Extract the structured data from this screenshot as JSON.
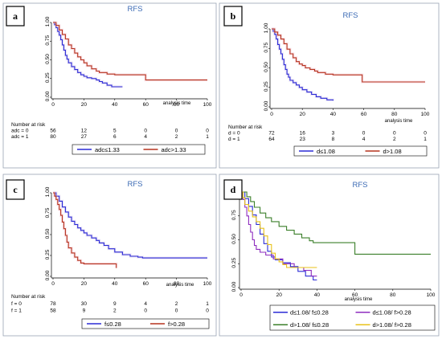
{
  "chart_data": [
    {
      "type": "line",
      "panel_tag": "a",
      "title": "RFS",
      "xlabel": "analysis time",
      "ylabel": "",
      "xlim": [
        0,
        100
      ],
      "ylim": [
        0,
        1
      ],
      "x_ticks": [
        "0",
        "20",
        "40",
        "60",
        "80",
        "100"
      ],
      "y_ticks": [
        "0.00",
        "0.25",
        "0.50",
        "0.75",
        "1.00"
      ],
      "confidence_band": true,
      "series": [
        {
          "name": "adc≤1.33",
          "color": "#2b2bd6",
          "points": [
            [
              0,
              1.0
            ],
            [
              1,
              0.97
            ],
            [
              2,
              0.93
            ],
            [
              3,
              0.88
            ],
            [
              4,
              0.83
            ],
            [
              5,
              0.77
            ],
            [
              6,
              0.7
            ],
            [
              7,
              0.63
            ],
            [
              8,
              0.56
            ],
            [
              9,
              0.51
            ],
            [
              10,
              0.46
            ],
            [
              12,
              0.41
            ],
            [
              14,
              0.37
            ],
            [
              16,
              0.33
            ],
            [
              18,
              0.3
            ],
            [
              20,
              0.28
            ],
            [
              22,
              0.26
            ],
            [
              25,
              0.25
            ],
            [
              28,
              0.23
            ],
            [
              30,
              0.21
            ],
            [
              32,
              0.19
            ],
            [
              35,
              0.16
            ],
            [
              38,
              0.14
            ],
            [
              45,
              0.14
            ]
          ]
        },
        {
          "name": "adc>1.33",
          "color": "#b5341e",
          "points": [
            [
              0,
              1.0
            ],
            [
              2,
              0.96
            ],
            [
              4,
              0.9
            ],
            [
              6,
              0.84
            ],
            [
              8,
              0.78
            ],
            [
              10,
              0.7
            ],
            [
              12,
              0.65
            ],
            [
              14,
              0.59
            ],
            [
              16,
              0.54
            ],
            [
              18,
              0.5
            ],
            [
              20,
              0.46
            ],
            [
              22,
              0.42
            ],
            [
              25,
              0.38
            ],
            [
              28,
              0.35
            ],
            [
              30,
              0.33
            ],
            [
              35,
              0.31
            ],
            [
              40,
              0.3
            ],
            [
              50,
              0.3
            ],
            [
              59,
              0.3
            ],
            [
              60,
              0.23
            ],
            [
              100,
              0.23
            ]
          ]
        }
      ],
      "risk_table": {
        "label": "Number at risk",
        "rows": [
          {
            "label": "adc = 0",
            "values": [
              "56",
              "12",
              "5",
              "0",
              "0",
              "0"
            ]
          },
          {
            "label": "adc = 1",
            "values": [
              "80",
              "27",
              "6",
              "4",
              "2",
              "1"
            ]
          }
        ]
      }
    },
    {
      "type": "line",
      "panel_tag": "b",
      "title": "RFS",
      "xlabel": "analysis time",
      "ylabel": "",
      "xlim": [
        0,
        100
      ],
      "ylim": [
        0,
        1
      ],
      "x_ticks": [
        "0",
        "20",
        "40",
        "60",
        "80",
        "100"
      ],
      "y_ticks": [
        "0.00",
        "0.25",
        "0.50",
        "0.75",
        "1.00"
      ],
      "confidence_band": true,
      "series": [
        {
          "name": "d≤1.08",
          "color": "#2b2bd6",
          "points": [
            [
              0,
              1.0
            ],
            [
              1,
              0.97
            ],
            [
              2,
              0.93
            ],
            [
              3,
              0.87
            ],
            [
              4,
              0.8
            ],
            [
              5,
              0.74
            ],
            [
              6,
              0.68
            ],
            [
              7,
              0.61
            ],
            [
              8,
              0.54
            ],
            [
              9,
              0.48
            ],
            [
              10,
              0.42
            ],
            [
              11,
              0.38
            ],
            [
              12,
              0.34
            ],
            [
              14,
              0.31
            ],
            [
              16,
              0.28
            ],
            [
              18,
              0.25
            ],
            [
              20,
              0.22
            ],
            [
              23,
              0.19
            ],
            [
              26,
              0.16
            ],
            [
              29,
              0.13
            ],
            [
              32,
              0.11
            ],
            [
              36,
              0.09
            ],
            [
              40,
              0.08
            ]
          ]
        },
        {
          "name": "d>1.08",
          "color": "#b5341e",
          "points": [
            [
              0,
              1.0
            ],
            [
              2,
              0.96
            ],
            [
              4,
              0.92
            ],
            [
              6,
              0.87
            ],
            [
              8,
              0.81
            ],
            [
              10,
              0.74
            ],
            [
              12,
              0.68
            ],
            [
              14,
              0.63
            ],
            [
              16,
              0.58
            ],
            [
              18,
              0.55
            ],
            [
              20,
              0.53
            ],
            [
              22,
              0.5
            ],
            [
              25,
              0.48
            ],
            [
              28,
              0.46
            ],
            [
              30,
              0.44
            ],
            [
              35,
              0.42
            ],
            [
              40,
              0.41
            ],
            [
              58,
              0.41
            ],
            [
              59,
              0.32
            ],
            [
              100,
              0.32
            ]
          ]
        }
      ],
      "risk_table": {
        "label": "Number at risk",
        "rows": [
          {
            "label": "d = 0",
            "values": [
              "72",
              "16",
              "3",
              "0",
              "0",
              "0"
            ]
          },
          {
            "label": "d = 1",
            "values": [
              "64",
              "23",
              "8",
              "4",
              "2",
              "1"
            ]
          }
        ]
      }
    },
    {
      "type": "line",
      "panel_tag": "c",
      "title": "RFS",
      "xlabel": "analysis time",
      "ylabel": "",
      "xlim": [
        0,
        100
      ],
      "ylim": [
        0,
        1
      ],
      "x_ticks": [
        "0",
        "20",
        "40",
        "60",
        "80",
        "100"
      ],
      "y_ticks": [
        "0.00",
        "0.25",
        "0.50",
        "0.75",
        "1.00"
      ],
      "confidence_band": true,
      "series": [
        {
          "name": "f≤0.28",
          "color": "#2b2bd6",
          "points": [
            [
              0,
              1.0
            ],
            [
              2,
              0.96
            ],
            [
              4,
              0.9
            ],
            [
              6,
              0.83
            ],
            [
              8,
              0.77
            ],
            [
              10,
              0.71
            ],
            [
              12,
              0.66
            ],
            [
              14,
              0.62
            ],
            [
              16,
              0.58
            ],
            [
              18,
              0.55
            ],
            [
              20,
              0.52
            ],
            [
              22,
              0.49
            ],
            [
              25,
              0.46
            ],
            [
              28,
              0.43
            ],
            [
              30,
              0.4
            ],
            [
              33,
              0.37
            ],
            [
              36,
              0.33
            ],
            [
              40,
              0.29
            ],
            [
              45,
              0.26
            ],
            [
              50,
              0.24
            ],
            [
              55,
              0.23
            ],
            [
              58,
              0.22
            ],
            [
              100,
              0.22
            ]
          ]
        },
        {
          "name": "f>0.28",
          "color": "#b5341e",
          "points": [
            [
              0,
              1.0
            ],
            [
              1,
              0.96
            ],
            [
              2,
              0.92
            ],
            [
              3,
              0.86
            ],
            [
              4,
              0.8
            ],
            [
              5,
              0.73
            ],
            [
              6,
              0.65
            ],
            [
              7,
              0.57
            ],
            [
              8,
              0.49
            ],
            [
              9,
              0.41
            ],
            [
              10,
              0.34
            ],
            [
              12,
              0.28
            ],
            [
              14,
              0.23
            ],
            [
              16,
              0.19
            ],
            [
              18,
              0.16
            ],
            [
              20,
              0.15
            ],
            [
              40,
              0.15
            ],
            [
              41,
              0.1
            ]
          ]
        }
      ],
      "risk_table": {
        "label": "Number at risk",
        "rows": [
          {
            "label": "f = 0",
            "values": [
              "78",
              "30",
              "9",
              "4",
              "2",
              "1"
            ]
          },
          {
            "label": "f = 1",
            "values": [
              "58",
              "9",
              "2",
              "0",
              "0",
              "0"
            ]
          }
        ]
      }
    },
    {
      "type": "line",
      "panel_tag": "d",
      "title": "RFS",
      "xlabel": "analysis time",
      "ylabel": "",
      "xlim": [
        0,
        100
      ],
      "ylim": [
        0,
        1
      ],
      "x_ticks": [
        "0",
        "20",
        "40",
        "60",
        "80",
        "100"
      ],
      "y_ticks": [
        "0.00",
        "0.25",
        "0.50",
        "0.75",
        "1.00"
      ],
      "confidence_band": false,
      "series": [
        {
          "name": "d≤1.08/ f≤0.28",
          "color": "#2b2bd6",
          "points": [
            [
              0,
              1.0
            ],
            [
              2,
              0.93
            ],
            [
              4,
              0.85
            ],
            [
              6,
              0.76
            ],
            [
              8,
              0.66
            ],
            [
              10,
              0.56
            ],
            [
              12,
              0.46
            ],
            [
              14,
              0.38
            ],
            [
              16,
              0.32
            ],
            [
              18,
              0.29
            ],
            [
              22,
              0.26
            ],
            [
              26,
              0.22
            ],
            [
              30,
              0.17
            ],
            [
              34,
              0.12
            ],
            [
              38,
              0.08
            ],
            [
              40,
              0.08
            ]
          ]
        },
        {
          "name": "d≤1.08/ f>0.28",
          "color": "#8e2dbf",
          "points": [
            [
              0,
              1.0
            ],
            [
              1,
              0.92
            ],
            [
              2,
              0.84
            ],
            [
              3,
              0.75
            ],
            [
              4,
              0.66
            ],
            [
              5,
              0.58
            ],
            [
              6,
              0.5
            ],
            [
              7,
              0.44
            ],
            [
              8,
              0.4
            ],
            [
              10,
              0.37
            ],
            [
              13,
              0.34
            ],
            [
              17,
              0.3
            ],
            [
              22,
              0.25
            ],
            [
              28,
              0.21
            ],
            [
              33,
              0.18
            ],
            [
              37,
              0.12
            ],
            [
              40,
              0.12
            ]
          ]
        },
        {
          "name": "d>1.08/ f≤0.28",
          "color": "#3b7f2a",
          "points": [
            [
              0,
              1.0
            ],
            [
              3,
              0.95
            ],
            [
              5,
              0.9
            ],
            [
              7,
              0.84
            ],
            [
              10,
              0.78
            ],
            [
              13,
              0.73
            ],
            [
              16,
              0.69
            ],
            [
              20,
              0.64
            ],
            [
              24,
              0.6
            ],
            [
              28,
              0.56
            ],
            [
              32,
              0.52
            ],
            [
              36,
              0.49
            ],
            [
              38,
              0.47
            ],
            [
              58,
              0.47
            ],
            [
              60,
              0.35
            ],
            [
              100,
              0.35
            ]
          ]
        },
        {
          "name": "d>1.08/ f>0.28",
          "color": "#e8c21a",
          "points": [
            [
              0,
              1.0
            ],
            [
              1,
              0.94
            ],
            [
              2,
              0.87
            ],
            [
              4,
              0.8
            ],
            [
              6,
              0.74
            ],
            [
              8,
              0.69
            ],
            [
              10,
              0.62
            ],
            [
              12,
              0.54
            ],
            [
              14,
              0.45
            ],
            [
              16,
              0.36
            ],
            [
              18,
              0.3
            ],
            [
              20,
              0.27
            ],
            [
              22,
              0.24
            ],
            [
              24,
              0.21
            ],
            [
              40,
              0.21
            ]
          ]
        }
      ]
    }
  ]
}
